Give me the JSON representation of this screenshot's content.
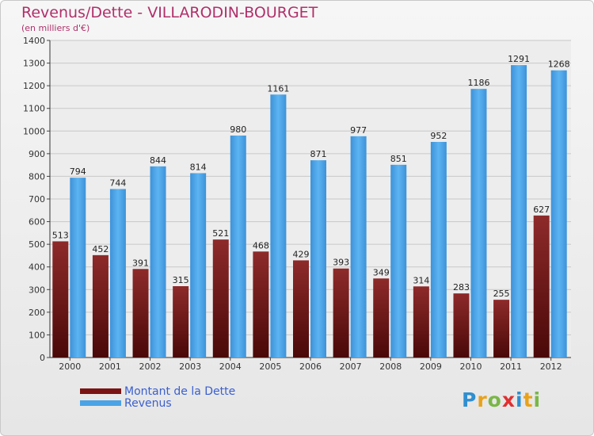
{
  "header": {
    "title": "Revenus/Dette - VILLARODIN-BOURGET",
    "subtitle": "(en milliers d'€)"
  },
  "legend": {
    "items": [
      {
        "label": "Montant de la Dette",
        "color": "#7a1414"
      },
      {
        "label": "Revenus",
        "color": "#4aa3e6"
      }
    ]
  },
  "logo": {
    "text": "Proxiti"
  },
  "chart_data": {
    "type": "bar",
    "title": "Revenus/Dette - VILLARODIN-BOURGET",
    "subtitle": "(en milliers d'€)",
    "categories": [
      "2000",
      "2001",
      "2002",
      "2003",
      "2004",
      "2005",
      "2006",
      "2007",
      "2008",
      "2009",
      "2010",
      "2011",
      "2012"
    ],
    "series": [
      {
        "name": "Montant de la Dette",
        "color": "#7a1414",
        "values": [
          513,
          452,
          391,
          315,
          521,
          468,
          429,
          393,
          349,
          314,
          283,
          255,
          627
        ]
      },
      {
        "name": "Revenus",
        "color": "#4aa3e6",
        "values": [
          794,
          744,
          844,
          814,
          980,
          1161,
          871,
          977,
          851,
          952,
          1186,
          1291,
          1268
        ]
      }
    ],
    "ylim": [
      0,
      1400
    ],
    "yticks": [
      0,
      100,
      200,
      300,
      400,
      500,
      600,
      700,
      800,
      900,
      1000,
      1100,
      1200,
      1300,
      1400
    ],
    "grid": true,
    "legend_position": "bottom-left"
  }
}
